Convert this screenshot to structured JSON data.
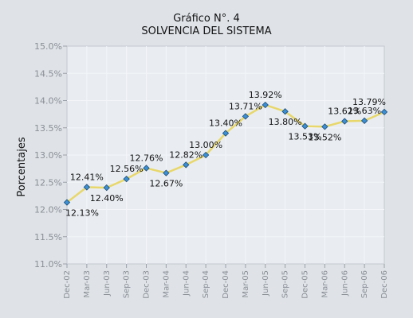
{
  "chart_data": {
    "type": "line",
    "title": "Gráfico N°. 4",
    "subtitle": "SOLVENCIA DEL SISTEMA",
    "xlabel": "",
    "ylabel": "Porcentajes",
    "ylim": [
      11.0,
      15.0
    ],
    "yticks": [
      "11.0%",
      "11.5%",
      "12.0%",
      "12.5%",
      "13.0%",
      "13.5%",
      "14.0%",
      "14.5%",
      "15.0%"
    ],
    "grid": true,
    "categories": [
      "Dec-02",
      "Mar-03",
      "Jun-03",
      "Sep-03",
      "Dec-03",
      "Mar-04",
      "Jun-04",
      "Sep-04",
      "Dec-04",
      "Mar-05",
      "Jun-05",
      "Sep-05",
      "Dec-05",
      "Mar-06",
      "Jun-06",
      "Sep-06",
      "Dec-06"
    ],
    "series": [
      {
        "values": [
          12.13,
          12.41,
          12.4,
          12.56,
          12.76,
          12.67,
          12.82,
          13.0,
          13.4,
          13.71,
          13.92,
          13.8,
          13.53,
          13.52,
          13.62,
          13.63,
          13.79
        ],
        "labels": [
          "12.13%",
          "12.41%",
          "12.40%",
          "12.56%",
          "12.76%",
          "12.67%",
          "12.82%",
          "13.00%",
          "13.40%",
          "13.71%",
          "13.92%",
          "13.80%",
          "13.53%",
          "13.52%",
          "13.62%",
          "13.63%",
          "13.79%"
        ],
        "line_color": "#e8d76a",
        "marker_color": "#3b8fd4"
      }
    ]
  }
}
